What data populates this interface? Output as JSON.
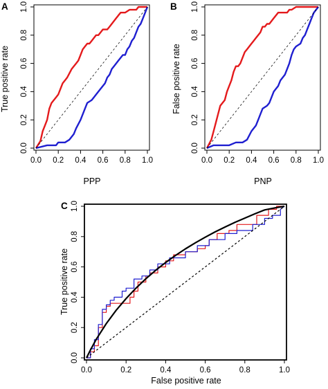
{
  "colors": {
    "red": "#e41a1c",
    "blue": "#1f1fd0",
    "black": "#000000"
  },
  "chart_data": [
    {
      "panel": "A",
      "type": "line",
      "title": "",
      "xlabel": "PPP",
      "ylabel": "True positive rate",
      "xlim": [
        0,
        1
      ],
      "ylim": [
        0,
        1
      ],
      "xticks": [
        "0.0",
        "0.2",
        "0.4",
        "0.6",
        "0.8",
        "1.0"
      ],
      "yticks": [
        "0.0",
        "0.2",
        "0.4",
        "0.6",
        "0.8",
        "1.0"
      ],
      "grid": false,
      "legend": "none",
      "series": [
        {
          "color": "red",
          "style": "solid",
          "x": [
            0,
            0.04,
            0.06,
            0.08,
            0.1,
            0.12,
            0.14,
            0.16,
            0.18,
            0.2,
            0.22,
            0.24,
            0.26,
            0.28,
            0.3,
            0.32,
            0.34,
            0.36,
            0.38,
            0.4,
            0.42,
            0.44,
            0.46,
            0.48,
            0.5,
            0.52,
            0.54,
            0.56,
            0.58,
            0.6,
            0.62,
            0.64,
            0.66,
            0.68,
            0.7,
            0.72,
            0.74,
            0.76,
            0.8,
            0.84,
            0.88,
            0.9,
            0.92,
            0.96,
            1.0
          ],
          "y": [
            0,
            0.05,
            0.12,
            0.16,
            0.2,
            0.28,
            0.32,
            0.34,
            0.36,
            0.38,
            0.42,
            0.46,
            0.48,
            0.5,
            0.53,
            0.56,
            0.58,
            0.6,
            0.62,
            0.66,
            0.7,
            0.72,
            0.74,
            0.74,
            0.76,
            0.78,
            0.8,
            0.8,
            0.82,
            0.84,
            0.84,
            0.84,
            0.86,
            0.88,
            0.9,
            0.92,
            0.94,
            0.96,
            0.96,
            0.98,
            0.98,
            0.98,
            1.0,
            1.0,
            1.0
          ]
        },
        {
          "color": "blue",
          "style": "solid",
          "x": [
            0,
            0.1,
            0.18,
            0.2,
            0.26,
            0.3,
            0.34,
            0.36,
            0.4,
            0.44,
            0.46,
            0.5,
            0.52,
            0.54,
            0.58,
            0.6,
            0.62,
            0.64,
            0.66,
            0.68,
            0.7,
            0.72,
            0.74,
            0.76,
            0.78,
            0.8,
            0.82,
            0.84,
            0.86,
            0.88,
            0.9,
            0.92,
            0.94,
            0.96,
            0.98,
            1.0
          ],
          "y": [
            0,
            0.02,
            0.02,
            0.04,
            0.04,
            0.06,
            0.1,
            0.14,
            0.2,
            0.28,
            0.32,
            0.34,
            0.36,
            0.38,
            0.42,
            0.44,
            0.46,
            0.5,
            0.52,
            0.56,
            0.58,
            0.6,
            0.62,
            0.64,
            0.66,
            0.66,
            0.7,
            0.72,
            0.76,
            0.78,
            0.82,
            0.86,
            0.88,
            0.92,
            0.96,
            1.0
          ]
        },
        {
          "color": "black",
          "style": "dashed",
          "x": [
            0,
            1
          ],
          "y": [
            0,
            1
          ]
        }
      ]
    },
    {
      "panel": "B",
      "type": "line",
      "title": "",
      "xlabel": "PNP",
      "ylabel": "False positive rate",
      "xlim": [
        0,
        1
      ],
      "ylim": [
        0,
        1
      ],
      "xticks": [
        "0.0",
        "0.2",
        "0.4",
        "0.6",
        "0.8",
        "1.0"
      ],
      "yticks": [
        "0.0",
        "0.2",
        "0.4",
        "0.6",
        "0.8",
        "1.0"
      ],
      "grid": false,
      "legend": "none",
      "series": [
        {
          "color": "red",
          "style": "solid",
          "x": [
            0,
            0.04,
            0.06,
            0.08,
            0.1,
            0.12,
            0.14,
            0.16,
            0.18,
            0.2,
            0.22,
            0.24,
            0.26,
            0.28,
            0.3,
            0.32,
            0.34,
            0.36,
            0.38,
            0.4,
            0.42,
            0.44,
            0.46,
            0.48,
            0.5,
            0.52,
            0.54,
            0.56,
            0.58,
            0.6,
            0.64,
            0.7,
            0.72,
            0.74,
            0.76,
            0.8,
            0.84,
            0.88,
            0.92,
            0.96,
            1.0
          ],
          "y": [
            0,
            0.06,
            0.12,
            0.18,
            0.24,
            0.3,
            0.32,
            0.34,
            0.4,
            0.44,
            0.48,
            0.54,
            0.58,
            0.58,
            0.6,
            0.64,
            0.68,
            0.7,
            0.72,
            0.74,
            0.76,
            0.78,
            0.8,
            0.82,
            0.86,
            0.86,
            0.88,
            0.88,
            0.9,
            0.92,
            0.96,
            0.96,
            0.96,
            0.98,
            0.98,
            1.0,
            1.0,
            1.0,
            1.0,
            1.0,
            1.0
          ]
        },
        {
          "color": "blue",
          "style": "solid",
          "x": [
            0,
            0.06,
            0.14,
            0.2,
            0.26,
            0.32,
            0.36,
            0.4,
            0.44,
            0.46,
            0.48,
            0.5,
            0.54,
            0.56,
            0.58,
            0.6,
            0.62,
            0.64,
            0.66,
            0.7,
            0.72,
            0.74,
            0.76,
            0.78,
            0.8,
            0.84,
            0.86,
            0.88,
            0.9,
            0.92,
            0.94,
            0.96,
            1.0
          ],
          "y": [
            0,
            0.02,
            0.02,
            0.02,
            0.04,
            0.04,
            0.06,
            0.12,
            0.16,
            0.2,
            0.24,
            0.28,
            0.3,
            0.32,
            0.36,
            0.4,
            0.42,
            0.44,
            0.48,
            0.52,
            0.56,
            0.6,
            0.66,
            0.7,
            0.72,
            0.74,
            0.78,
            0.8,
            0.84,
            0.88,
            0.92,
            0.96,
            1.0
          ]
        },
        {
          "color": "black",
          "style": "dashed",
          "x": [
            0,
            1
          ],
          "y": [
            0,
            1
          ]
        }
      ]
    },
    {
      "panel": "C",
      "type": "line",
      "title": "",
      "xlabel": "False positive rate",
      "ylabel": "True positive rate",
      "xlim": [
        0,
        1
      ],
      "ylim": [
        0,
        1
      ],
      "xticks": [
        "0.0",
        "0.2",
        "0.4",
        "0.6",
        "0.8",
        "1.0"
      ],
      "yticks": [
        "0.0",
        "0.2",
        "0.4",
        "0.6",
        "0.8",
        "1.0"
      ],
      "grid": false,
      "legend": "none",
      "series": [
        {
          "color": "red",
          "style": "solid",
          "x": [
            0,
            0.02,
            0.02,
            0.04,
            0.04,
            0.06,
            0.06,
            0.08,
            0.08,
            0.1,
            0.1,
            0.12,
            0.12,
            0.16,
            0.16,
            0.22,
            0.22,
            0.24,
            0.24,
            0.26,
            0.26,
            0.3,
            0.3,
            0.32,
            0.32,
            0.36,
            0.36,
            0.4,
            0.4,
            0.44,
            0.44,
            0.5,
            0.5,
            0.56,
            0.56,
            0.6,
            0.6,
            0.62,
            0.62,
            0.66,
            0.66,
            0.72,
            0.72,
            0.76,
            0.76,
            0.86,
            0.86,
            0.92,
            0.92,
            0.96,
            0.96,
            1.0
          ],
          "y": [
            0,
            0,
            0.04,
            0.04,
            0.08,
            0.08,
            0.2,
            0.2,
            0.3,
            0.3,
            0.34,
            0.34,
            0.36,
            0.36,
            0.36,
            0.36,
            0.4,
            0.4,
            0.44,
            0.44,
            0.5,
            0.5,
            0.54,
            0.54,
            0.56,
            0.56,
            0.6,
            0.6,
            0.64,
            0.64,
            0.68,
            0.68,
            0.7,
            0.7,
            0.72,
            0.72,
            0.74,
            0.74,
            0.78,
            0.78,
            0.82,
            0.82,
            0.84,
            0.84,
            0.88,
            0.88,
            0.94,
            0.94,
            0.98,
            0.98,
            1.0,
            1.0
          ]
        },
        {
          "color": "blue",
          "style": "solid",
          "x": [
            0,
            0.02,
            0.02,
            0.04,
            0.04,
            0.06,
            0.06,
            0.08,
            0.08,
            0.1,
            0.1,
            0.12,
            0.12,
            0.14,
            0.14,
            0.18,
            0.18,
            0.2,
            0.2,
            0.24,
            0.24,
            0.28,
            0.28,
            0.32,
            0.32,
            0.36,
            0.36,
            0.42,
            0.42,
            0.5,
            0.5,
            0.56,
            0.56,
            0.62,
            0.62,
            0.7,
            0.7,
            0.76,
            0.76,
            0.84,
            0.84,
            0.9,
            0.9,
            0.94,
            0.94,
            0.98,
            0.98,
            1.0
          ],
          "y": [
            0,
            0,
            0.06,
            0.06,
            0.12,
            0.12,
            0.22,
            0.22,
            0.32,
            0.32,
            0.35,
            0.35,
            0.38,
            0.38,
            0.4,
            0.4,
            0.44,
            0.44,
            0.46,
            0.46,
            0.52,
            0.52,
            0.54,
            0.54,
            0.58,
            0.58,
            0.62,
            0.62,
            0.66,
            0.66,
            0.7,
            0.7,
            0.74,
            0.74,
            0.78,
            0.78,
            0.82,
            0.82,
            0.84,
            0.84,
            0.88,
            0.88,
            0.92,
            0.92,
            0.94,
            0.94,
            0.98,
            1.0
          ]
        },
        {
          "color": "black",
          "style": "solid",
          "x": [
            0,
            0.02,
            0.05,
            0.1,
            0.15,
            0.2,
            0.25,
            0.3,
            0.35,
            0.4,
            0.45,
            0.5,
            0.55,
            0.6,
            0.65,
            0.7,
            0.75,
            0.8,
            0.85,
            0.9,
            0.95,
            1.0
          ],
          "y": [
            0,
            0.052,
            0.124,
            0.226,
            0.314,
            0.391,
            0.46,
            0.522,
            0.578,
            0.629,
            0.676,
            0.719,
            0.759,
            0.796,
            0.831,
            0.863,
            0.894,
            0.922,
            0.95,
            0.976,
            0.989,
            1.0
          ]
        },
        {
          "color": "black",
          "style": "dashed",
          "x": [
            0,
            1
          ],
          "y": [
            0,
            1
          ]
        }
      ]
    }
  ]
}
